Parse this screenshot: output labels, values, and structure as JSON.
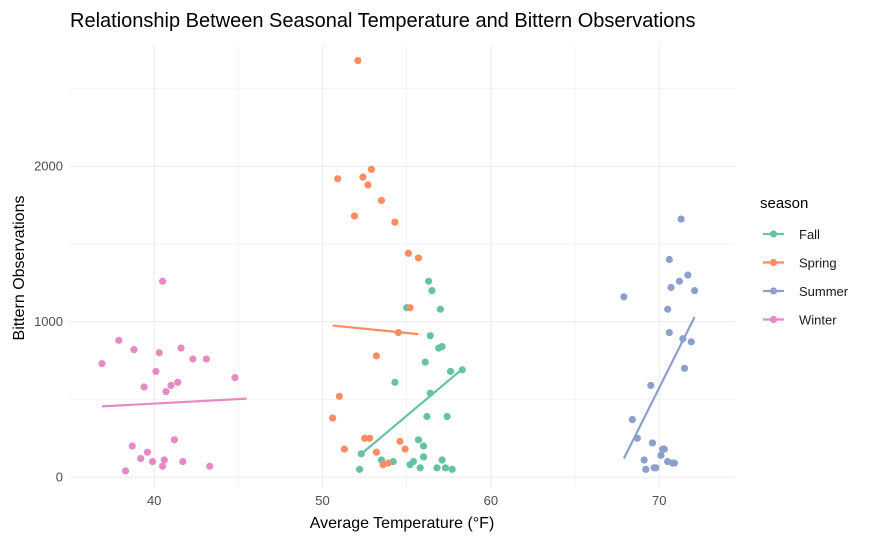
{
  "chart_data": {
    "type": "scatter",
    "title": "Relationship Between Seasonal Temperature and Bittern Observations",
    "xlabel": "Average Temperature (°F)",
    "ylabel": "Bittern Observations",
    "xlim": [
      35,
      74.5
    ],
    "ylim": [
      -70,
      2780
    ],
    "x_ticks": [
      40,
      50,
      60,
      70
    ],
    "y_ticks": [
      0,
      1000,
      2000
    ],
    "grid": true,
    "legend": {
      "title": "season",
      "position": "right"
    },
    "series": [
      {
        "name": "Fall",
        "color": "#66c2a5",
        "points": [
          [
            52.2,
            50
          ],
          [
            52.3,
            150
          ],
          [
            53.5,
            110
          ],
          [
            54.2,
            100
          ],
          [
            54.3,
            610
          ],
          [
            55,
            1090
          ],
          [
            55.2,
            80
          ],
          [
            55.4,
            100
          ],
          [
            55.7,
            240
          ],
          [
            55.8,
            60
          ],
          [
            56,
            130
          ],
          [
            56,
            200
          ],
          [
            56.1,
            740
          ],
          [
            56.2,
            390
          ],
          [
            56.3,
            1260
          ],
          [
            56.4,
            540
          ],
          [
            56.4,
            910
          ],
          [
            56.5,
            1200
          ],
          [
            56.8,
            60
          ],
          [
            56.9,
            830
          ],
          [
            57,
            1080
          ],
          [
            57.1,
            840
          ],
          [
            57.1,
            110
          ],
          [
            57.3,
            60
          ],
          [
            57.4,
            390
          ],
          [
            57.6,
            680
          ],
          [
            57.7,
            50
          ],
          [
            58.3,
            690
          ]
        ],
        "trend": [
          [
            52.2,
            140
          ],
          [
            58.3,
            695
          ]
        ]
      },
      {
        "name": "Spring",
        "color": "#fc8d62",
        "points": [
          [
            50.6,
            380
          ],
          [
            50.9,
            1920
          ],
          [
            51,
            520
          ],
          [
            51.3,
            180
          ],
          [
            51.9,
            1680
          ],
          [
            52.1,
            2680
          ],
          [
            52.4,
            1930
          ],
          [
            52.5,
            250
          ],
          [
            52.7,
            1880
          ],
          [
            52.8,
            250
          ],
          [
            52.9,
            1980
          ],
          [
            53.2,
            780
          ],
          [
            53.2,
            160
          ],
          [
            53.5,
            1780
          ],
          [
            53.6,
            80
          ],
          [
            53.9,
            90
          ],
          [
            54.3,
            1640
          ],
          [
            54.5,
            930
          ],
          [
            54.6,
            230
          ],
          [
            54.9,
            180
          ],
          [
            55.1,
            1440
          ],
          [
            55.2,
            1090
          ],
          [
            55.7,
            1410
          ]
        ],
        "trend": [
          [
            50.6,
            975
          ],
          [
            55.7,
            920
          ]
        ]
      },
      {
        "name": "Summer",
        "color": "#8da0cb",
        "points": [
          [
            67.9,
            1160
          ],
          [
            68.4,
            370
          ],
          [
            68.7,
            250
          ],
          [
            69.1,
            110
          ],
          [
            69.2,
            50
          ],
          [
            69.5,
            590
          ],
          [
            69.6,
            220
          ],
          [
            69.7,
            60
          ],
          [
            69.8,
            60
          ],
          [
            70.1,
            140
          ],
          [
            70.2,
            180
          ],
          [
            70.3,
            180
          ],
          [
            70.5,
            100
          ],
          [
            70.5,
            1080
          ],
          [
            70.6,
            930
          ],
          [
            70.6,
            1400
          ],
          [
            70.7,
            1220
          ],
          [
            70.8,
            90
          ],
          [
            70.9,
            90
          ],
          [
            71.2,
            1260
          ],
          [
            71.3,
            1660
          ],
          [
            71.5,
            700
          ],
          [
            71.4,
            890
          ],
          [
            71.7,
            1300
          ],
          [
            71.9,
            870
          ],
          [
            72.1,
            1200
          ]
        ],
        "trend": [
          [
            67.9,
            120
          ],
          [
            72.1,
            1030
          ]
        ]
      },
      {
        "name": "Winter",
        "color": "#e78ac3",
        "points": [
          [
            36.9,
            730
          ],
          [
            37.9,
            880
          ],
          [
            38.3,
            40
          ],
          [
            38.7,
            200
          ],
          [
            38.8,
            820
          ],
          [
            39.2,
            120
          ],
          [
            39.4,
            580
          ],
          [
            39.6,
            160
          ],
          [
            39.9,
            100
          ],
          [
            40.1,
            680
          ],
          [
            40.3,
            800
          ],
          [
            40.5,
            70
          ],
          [
            40.5,
            1260
          ],
          [
            40.6,
            110
          ],
          [
            40.7,
            550
          ],
          [
            41,
            590
          ],
          [
            41.2,
            240
          ],
          [
            41.4,
            610
          ],
          [
            41.6,
            830
          ],
          [
            41.7,
            100
          ],
          [
            42.3,
            760
          ],
          [
            43.1,
            760
          ],
          [
            43.3,
            70
          ],
          [
            44.8,
            640
          ]
        ],
        "trend": [
          [
            36.9,
            455
          ],
          [
            45.5,
            505
          ]
        ]
      }
    ]
  }
}
